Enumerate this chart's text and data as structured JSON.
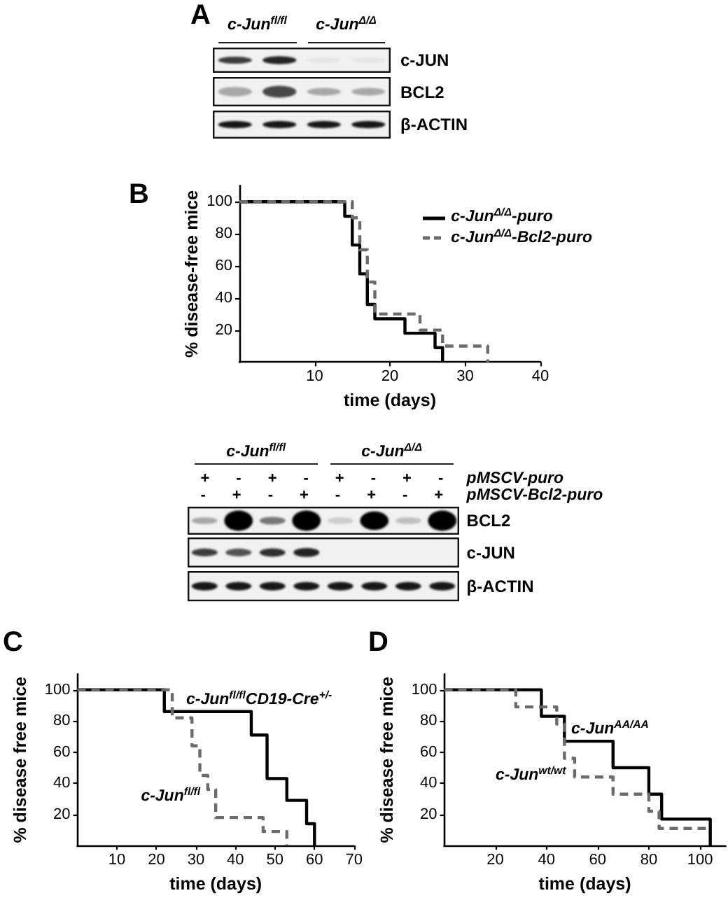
{
  "chart_data": [
    {
      "type": "other",
      "title": "A",
      "categories": [
        "c-Jun$^{fl/fl}$",
        "c-Jun$^{Δ/Δ}$"
      ],
      "y_categories": [
        "c-JUN",
        "BCL2",
        "β-ACTIN"
      ]
    },
    {
      "type": "step",
      "title": "B",
      "xlabel": "time (days)",
      "ylabel": "% disease-free mice",
      "xlim": [
        0,
        40
      ],
      "xticks": [
        10,
        20,
        30,
        40
      ],
      "ylim": [
        0,
        110
      ],
      "yticks": [
        20,
        40,
        60,
        80,
        100
      ],
      "legend": "top right",
      "series": [
        {
          "name": "c-Jun$^{Δ/Δ}$-puro",
          "color": "#000000",
          "line_style": "solid",
          "x": [
            0,
            14,
            15,
            16,
            17,
            18,
            22,
            26,
            27
          ],
          "values": [
            100,
            91,
            73,
            55,
            36,
            27,
            18,
            9,
            0
          ]
        },
        {
          "name": "c-Jun$^{Δ/Δ}$-Bcl2-puro",
          "color": "#6b6b6b",
          "line_style": "dashed",
          "x": [
            0,
            15,
            16,
            17,
            18,
            24,
            27,
            33
          ],
          "values": [
            100,
            90,
            70,
            50,
            30,
            20,
            10,
            0
          ]
        }
      ]
    },
    {
      "type": "other",
      "categories": [
        "c-Jun$^{fl/fl}$",
        "c-Jun$^{Δ/Δ}$"
      ],
      "y_categories": [
        "BCL2",
        "c-JUN",
        "β-ACTIN"
      ],
      "annotations": [
        "pMSCV-puro",
        "pMSCV-Bcl2-puro",
        "+ - + - + - + -",
        "- + - + - + - +"
      ]
    },
    {
      "type": "step",
      "title": "C",
      "xlabel": "time (days)",
      "ylabel": "% disease free mice",
      "xlim": [
        0,
        70
      ],
      "xticks": [
        10,
        20,
        30,
        40,
        50,
        60,
        70
      ],
      "ylim": [
        0,
        110
      ],
      "yticks": [
        20,
        40,
        60,
        80,
        100
      ],
      "series": [
        {
          "name": "c-Jun$^{fl/fl}$CD19-Cre$^{+/-}$",
          "color": "#000000",
          "line_style": "solid",
          "x": [
            0,
            22,
            44,
            48,
            53,
            58,
            60
          ],
          "values": [
            100,
            86,
            71,
            43,
            29,
            14,
            0
          ]
        },
        {
          "name": "c-Jun$^{fl/fl}$",
          "color": "#6b6b6b",
          "line_style": "dashed",
          "x": [
            0,
            24,
            29,
            31,
            33,
            35,
            47,
            53
          ],
          "values": [
            100,
            82,
            64,
            45,
            36,
            18,
            9,
            0
          ]
        }
      ]
    },
    {
      "type": "step",
      "title": "D",
      "xlabel": "time (days)",
      "ylabel": "% disease free mice",
      "xlim": [
        0,
        110
      ],
      "xticks": [
        20,
        40,
        60,
        80,
        100
      ],
      "ylim": [
        0,
        110
      ],
      "yticks": [
        20,
        40,
        60,
        80,
        100
      ],
      "series": [
        {
          "name": "c-Jun$^{AA/AA}$",
          "color": "#000000",
          "line_style": "solid",
          "x": [
            0,
            38,
            47,
            66,
            80,
            85,
            104
          ],
          "values": [
            100,
            83,
            67,
            50,
            33,
            17,
            0
          ]
        },
        {
          "name": "c-Jun$^{wt/wt}$",
          "color": "#6b6b6b",
          "line_style": "dashed",
          "x": [
            0,
            28,
            44,
            47,
            51,
            66,
            80,
            84,
            104
          ],
          "values": [
            100,
            89,
            78,
            56,
            44,
            33,
            22,
            11,
            11
          ]
        }
      ]
    }
  ]
}
